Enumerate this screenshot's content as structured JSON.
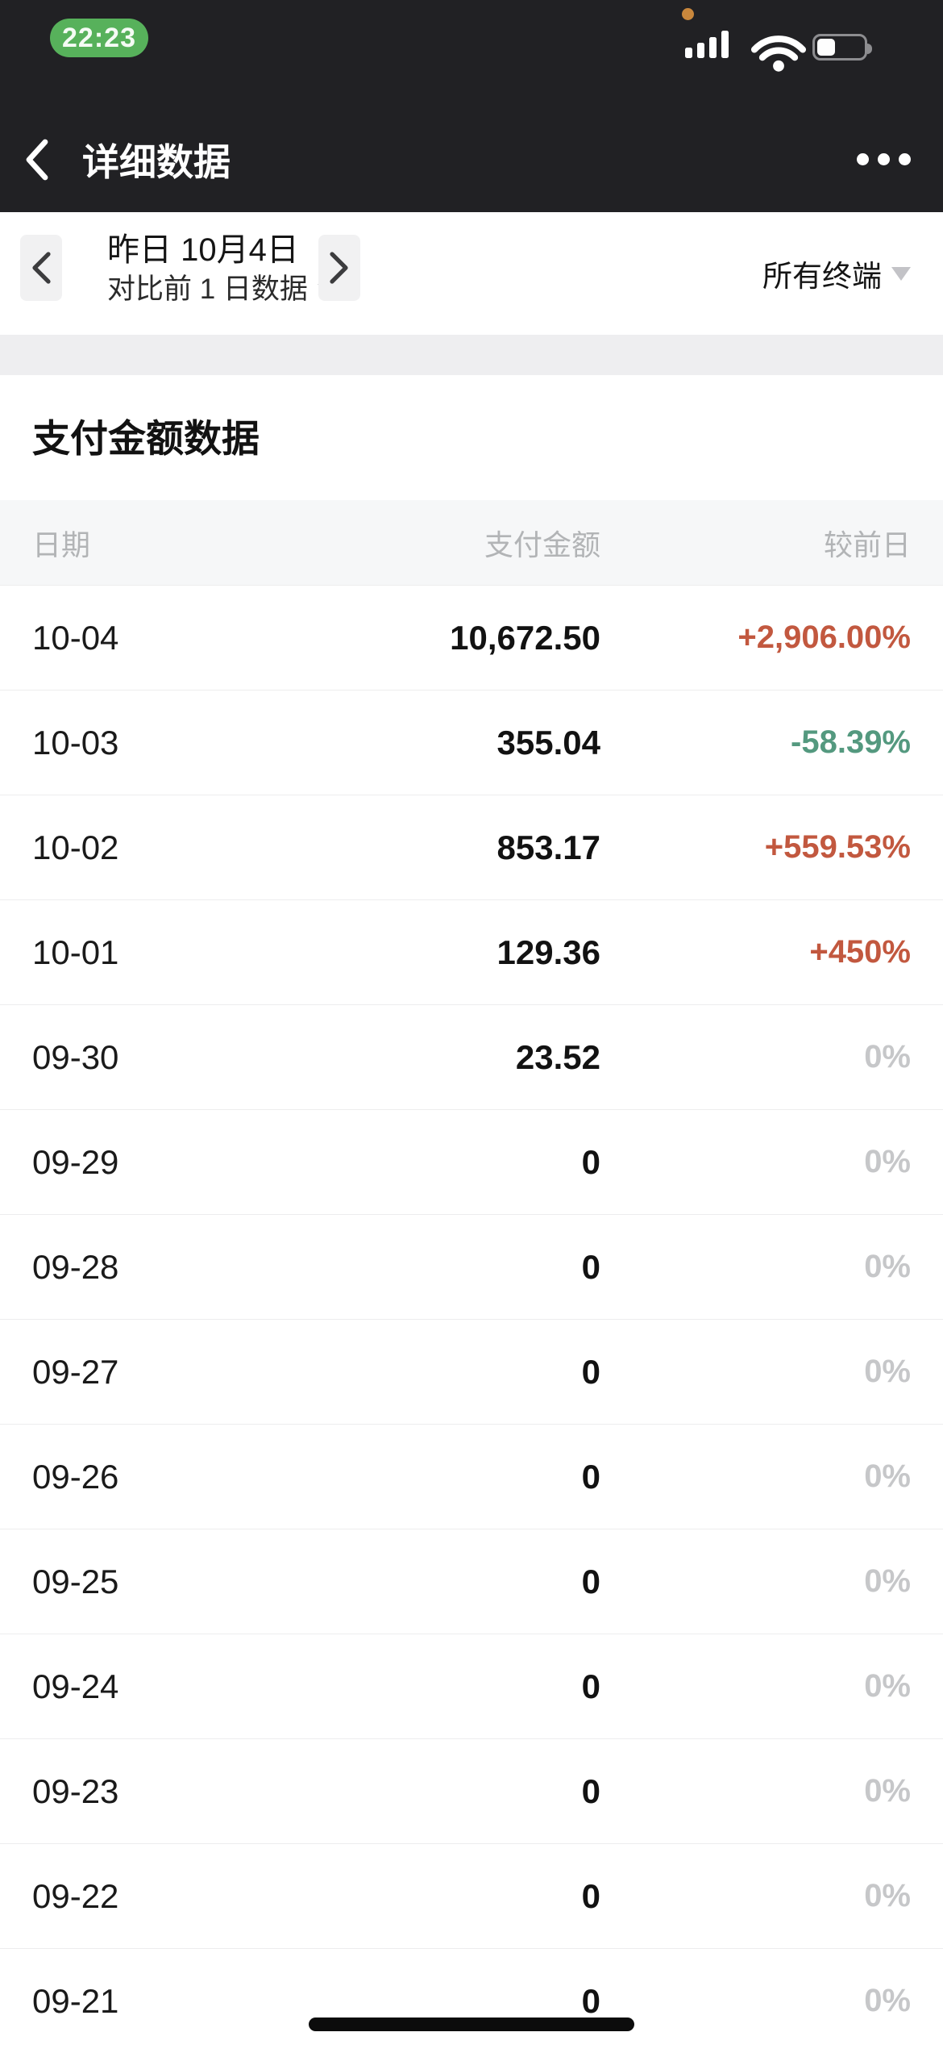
{
  "status_bar": {
    "time": "22:23",
    "time_pill_color": "#57b15b",
    "recording_dot_color": "#c9873c",
    "battery_level_percent": 40
  },
  "nav": {
    "title": "详细数据"
  },
  "date_bar": {
    "date_label": "昨日 10月4日",
    "compare_label": "对比前 1 日数据",
    "device_filter_label": "所有终端"
  },
  "section": {
    "title": "支付金额数据"
  },
  "table": {
    "headers": {
      "date": "日期",
      "amount": "支付金额",
      "change": "较前日"
    },
    "rows": [
      {
        "date": "10-04",
        "amount": "10,672.50",
        "change": "+2,906.00%",
        "trend": "up"
      },
      {
        "date": "10-03",
        "amount": "355.04",
        "change": "-58.39%",
        "trend": "down"
      },
      {
        "date": "10-02",
        "amount": "853.17",
        "change": "+559.53%",
        "trend": "up"
      },
      {
        "date": "10-01",
        "amount": "129.36",
        "change": "+450%",
        "trend": "up"
      },
      {
        "date": "09-30",
        "amount": "23.52",
        "change": "0%",
        "trend": "flat"
      },
      {
        "date": "09-29",
        "amount": "0",
        "change": "0%",
        "trend": "flat"
      },
      {
        "date": "09-28",
        "amount": "0",
        "change": "0%",
        "trend": "flat"
      },
      {
        "date": "09-27",
        "amount": "0",
        "change": "0%",
        "trend": "flat"
      },
      {
        "date": "09-26",
        "amount": "0",
        "change": "0%",
        "trend": "flat"
      },
      {
        "date": "09-25",
        "amount": "0",
        "change": "0%",
        "trend": "flat"
      },
      {
        "date": "09-24",
        "amount": "0",
        "change": "0%",
        "trend": "flat"
      },
      {
        "date": "09-23",
        "amount": "0",
        "change": "0%",
        "trend": "flat"
      },
      {
        "date": "09-22",
        "amount": "0",
        "change": "0%",
        "trend": "flat"
      },
      {
        "date": "09-21",
        "amount": "0",
        "change": "0%",
        "trend": "flat"
      }
    ]
  },
  "colors": {
    "trend_up": "#c2583f",
    "trend_down": "#54997f",
    "trend_flat": "#c6c7c9",
    "top_bar_bg": "#212124",
    "header_row_bg": "#f6f7f8",
    "section_gap_bg": "#eeeef0"
  }
}
